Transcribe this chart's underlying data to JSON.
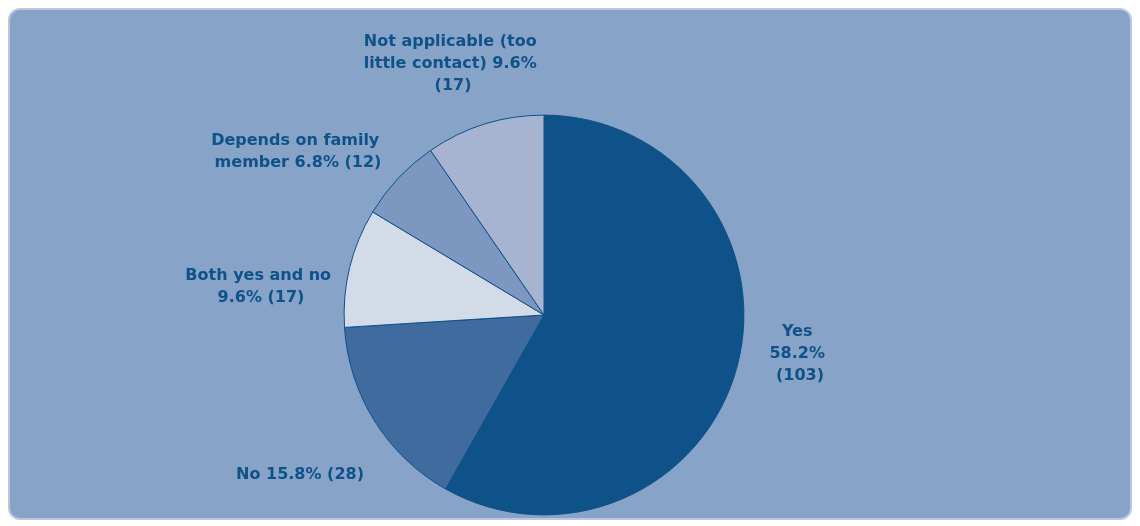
{
  "chart_data": {
    "type": "pie",
    "categories": [
      "Yes",
      "No",
      "Both yes and no",
      "Depends on family member",
      "Not applicable (too little contact)"
    ],
    "values": [
      103,
      28,
      17,
      12,
      17
    ],
    "value_labels": [
      "58.2% (103)",
      "15.8% (28)",
      "9.6% (17)",
      "6.8% (12)",
      "9.6% (17)"
    ],
    "colors": [
      "#0f5189",
      "#3f6b9e",
      "#d3dbe9",
      "#7d97c0",
      "#a6b4d2"
    ],
    "legend": false
  }
}
